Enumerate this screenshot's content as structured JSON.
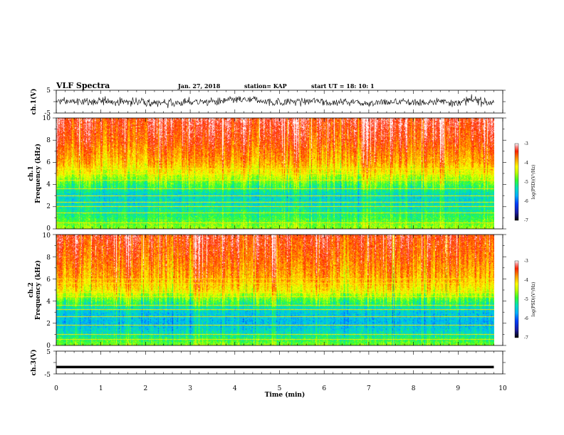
{
  "header": {
    "title": "VLF Spectra",
    "date": "Jan. 27, 2018",
    "station": "station= KAP",
    "start_ut": "start  UT  =   18: 10: 1"
  },
  "chart_data": [
    {
      "type": "line",
      "ylabel": "ch.1(V)",
      "x": [
        0,
        9.8
      ],
      "xlim": [
        0,
        10
      ],
      "ylim": [
        -5,
        5
      ],
      "y_ticks": [
        "5",
        "-5"
      ],
      "description_values": {
        "mean": 0,
        "amplitude": 1.8
      },
      "color": "#000000"
    },
    {
      "type": "heatmap",
      "ylabel_top": "ch.1",
      "ylabel": "Frequency  (kHz)",
      "ylim": [
        0,
        10
      ],
      "xlim": [
        0,
        10
      ],
      "y_ticks": [
        "0",
        "2",
        "4",
        "6",
        "8",
        "10"
      ],
      "colorbar": {
        "label": "log(PSD)(V²/Hz)",
        "ticks": [
          "-3",
          "-4",
          "-5",
          "-6",
          "-7"
        ],
        "range": [
          -7,
          -3
        ]
      },
      "profile_kHz": [
        0,
        1,
        2,
        3,
        4,
        5,
        6,
        8,
        10
      ],
      "profile_logpsd": [
        -4.6,
        -5.0,
        -5.3,
        -5.4,
        -4.9,
        -4.3,
        -3.9,
        -3.5,
        -3.3
      ],
      "line_kHz": [
        0.5,
        1.4,
        2.0,
        2.4,
        3.0,
        3.6,
        4.4,
        5.0,
        5.4
      ]
    },
    {
      "type": "heatmap",
      "ylabel_top": "ch.2",
      "ylabel": "Frequency  (kHz)",
      "ylim": [
        0,
        10
      ],
      "xlim": [
        0,
        10
      ],
      "y_ticks": [
        "0",
        "2",
        "4",
        "6",
        "8",
        "10"
      ],
      "colorbar": {
        "label": "log(PSD)(V²/Hz)",
        "ticks": [
          "-3",
          "-4",
          "-5",
          "-6",
          "-7"
        ],
        "range": [
          -7,
          -3
        ]
      },
      "profile_kHz": [
        0,
        1,
        2,
        3,
        4,
        5,
        6,
        8,
        10
      ],
      "profile_logpsd": [
        -4.7,
        -5.3,
        -5.6,
        -5.5,
        -4.9,
        -4.2,
        -3.9,
        -3.6,
        -3.4
      ],
      "line_kHz": [
        0.5,
        1.0,
        1.8,
        2.6,
        3.2,
        3.6,
        4.4,
        4.8,
        5.6,
        6.0
      ]
    },
    {
      "type": "line",
      "ylabel": "ch.3(V)",
      "x": [
        0,
        9.8
      ],
      "y": [
        -2,
        -2
      ],
      "xlim": [
        0,
        10
      ],
      "ylim": [
        -5,
        5
      ],
      "y_ticks": [
        "5",
        "-5"
      ],
      "xlabel": "Time  (min)",
      "x_ticks": [
        "0",
        "1",
        "2",
        "3",
        "4",
        "5",
        "6",
        "7",
        "8",
        "9",
        "10"
      ]
    }
  ]
}
